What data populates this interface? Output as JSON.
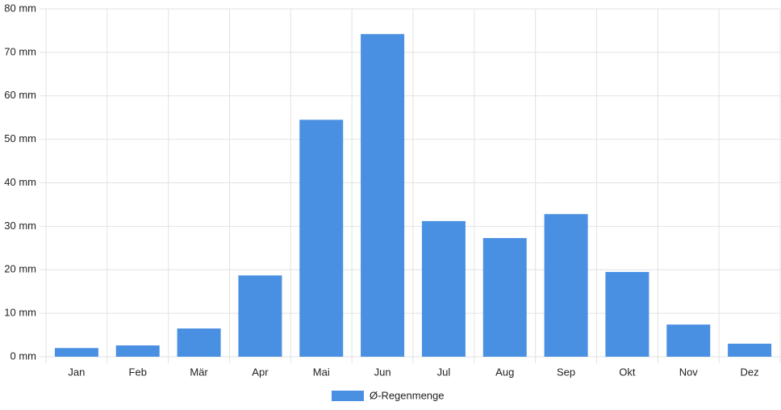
{
  "chart_data": {
    "type": "bar",
    "categories": [
      "Jan",
      "Feb",
      "Mär",
      "Apr",
      "Mai",
      "Jun",
      "Jul",
      "Aug",
      "Sep",
      "Okt",
      "Nov",
      "Dez"
    ],
    "series": [
      {
        "name": "Ø-Regenmenge",
        "color": "#4a90e2",
        "values": [
          2.0,
          2.6,
          6.5,
          18.7,
          54.5,
          74.2,
          31.2,
          27.3,
          32.8,
          19.5,
          7.4,
          3.0
        ]
      }
    ],
    "ylim": [
      0,
      80
    ],
    "yticks": [
      {
        "value": 0,
        "label": "0 mm"
      },
      {
        "value": 10,
        "label": "10 mm"
      },
      {
        "value": 20,
        "label": "20 mm"
      },
      {
        "value": 30,
        "label": "30 mm"
      },
      {
        "value": 40,
        "label": "40 mm"
      },
      {
        "value": 50,
        "label": "50 mm"
      },
      {
        "value": 60,
        "label": "60 mm"
      },
      {
        "value": 70,
        "label": "70 mm"
      },
      {
        "value": 80,
        "label": "80 mm"
      }
    ],
    "grid": true,
    "legend": "bottom"
  }
}
